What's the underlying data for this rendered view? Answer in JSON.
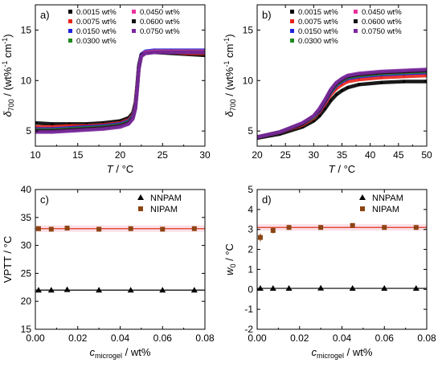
{
  "chart_data": [
    {
      "type": "scatter",
      "panel_label": "a)",
      "xlabel": "T / °C",
      "ylabel": "δ700 / (wt%-1 cm-1)",
      "xlim": [
        10,
        30
      ],
      "ylim": [
        3.5,
        17.5
      ],
      "xticks": [
        10,
        15,
        20,
        25,
        30
      ],
      "yticks": [
        5,
        10,
        15
      ],
      "legend_position": "top",
      "series": [
        {
          "name": "0.0015 wt%",
          "color": "#000000",
          "x": [
            10,
            12,
            14,
            16,
            18,
            20,
            21,
            21.5,
            21.8,
            22,
            22.2,
            22.5,
            23,
            24,
            26,
            28,
            30
          ],
          "y": [
            5.8,
            5.7,
            5.7,
            5.7,
            5.8,
            6.0,
            6.3,
            6.8,
            7.8,
            9.5,
            11.5,
            12.6,
            12.8,
            12.8,
            12.7,
            12.6,
            12.5
          ]
        },
        {
          "name": "0.0075 wt%",
          "color": "#e8241a",
          "x": [
            10,
            12,
            14,
            16,
            18,
            20,
            21,
            21.5,
            21.8,
            22,
            22.2,
            22.5,
            23,
            24,
            26,
            28,
            30
          ],
          "y": [
            5.4,
            5.4,
            5.5,
            5.5,
            5.6,
            5.8,
            6.1,
            6.6,
            7.6,
            9.4,
            11.4,
            12.5,
            12.8,
            12.8,
            12.8,
            12.7,
            12.7
          ]
        },
        {
          "name": "0.0150 wt%",
          "color": "#1f22e0",
          "x": [
            10,
            12,
            14,
            16,
            18,
            20,
            21,
            21.5,
            21.8,
            22,
            22.2,
            22.5,
            23,
            24,
            26,
            28,
            30
          ],
          "y": [
            5.2,
            5.2,
            5.3,
            5.4,
            5.5,
            5.7,
            6.0,
            6.5,
            7.5,
            9.3,
            11.4,
            12.6,
            12.9,
            13.0,
            13.0,
            13.0,
            13.0
          ]
        },
        {
          "name": "0.0300 wt%",
          "color": "#1e8a1e",
          "x": [
            10,
            12,
            14,
            16,
            18,
            20,
            21,
            21.5,
            21.8,
            22,
            22.2,
            22.5,
            23,
            24,
            26,
            28,
            30
          ],
          "y": [
            5.1,
            5.1,
            5.2,
            5.3,
            5.4,
            5.6,
            5.9,
            6.4,
            7.4,
            9.2,
            11.3,
            12.5,
            12.8,
            12.9,
            12.9,
            12.9,
            12.9
          ]
        },
        {
          "name": "0.0450 wt%",
          "color": "#e8329b",
          "x": [
            10,
            12,
            14,
            16,
            18,
            20,
            21,
            21.5,
            21.8,
            22,
            22.2,
            22.5,
            23,
            24,
            26,
            28,
            30
          ],
          "y": [
            5.0,
            5.0,
            5.1,
            5.2,
            5.3,
            5.5,
            5.8,
            6.3,
            7.3,
            9.1,
            11.2,
            12.5,
            12.8,
            12.9,
            12.9,
            12.9,
            12.9
          ]
        },
        {
          "name": "0.0600 wt%",
          "color": "#111111",
          "x": [
            10,
            12,
            14,
            16,
            18,
            20,
            21,
            21.5,
            21.8,
            22,
            22.2,
            22.5,
            23,
            24,
            26,
            28,
            30
          ],
          "y": [
            5.0,
            5.0,
            5.1,
            5.2,
            5.3,
            5.5,
            5.8,
            6.3,
            7.3,
            9.1,
            11.2,
            12.5,
            12.7,
            12.8,
            12.8,
            12.8,
            12.8
          ]
        },
        {
          "name": "0.0750 wt%",
          "color": "#7b2aa0",
          "x": [
            10,
            12,
            14,
            16,
            18,
            20,
            21,
            21.5,
            21.8,
            22,
            22.2,
            22.5,
            23,
            24,
            26,
            28,
            30
          ],
          "y": [
            4.9,
            4.9,
            5.0,
            5.1,
            5.2,
            5.4,
            5.7,
            6.2,
            7.2,
            9.0,
            11.1,
            12.4,
            12.7,
            12.8,
            12.8,
            12.8,
            12.8
          ]
        }
      ]
    },
    {
      "type": "scatter",
      "panel_label": "b)",
      "xlabel": "T / °C",
      "ylabel": "δ700 / (wt%-1 cm-1)",
      "xlim": [
        20,
        50
      ],
      "ylim": [
        3.5,
        17.5
      ],
      "xticks": [
        20,
        25,
        30,
        35,
        40,
        45,
        50
      ],
      "yticks": [
        5,
        10,
        15
      ],
      "legend_position": "top",
      "series": [
        {
          "name": "0.0015 wt%",
          "color": "#000000",
          "x": [
            20,
            24,
            28,
            30,
            31,
            32,
            33,
            34,
            35,
            36,
            38,
            42,
            46,
            50
          ],
          "y": [
            4.3,
            4.7,
            5.4,
            6.0,
            6.5,
            7.2,
            8.0,
            8.6,
            9.0,
            9.3,
            9.6,
            9.8,
            9.9,
            9.9
          ]
        },
        {
          "name": "0.0075 wt%",
          "color": "#e8241a",
          "x": [
            20,
            24,
            28,
            30,
            31,
            32,
            33,
            34,
            35,
            36,
            38,
            42,
            46,
            50
          ],
          "y": [
            4.4,
            4.9,
            5.6,
            6.3,
            6.9,
            7.7,
            8.6,
            9.2,
            9.6,
            9.9,
            10.1,
            10.3,
            10.4,
            10.5
          ]
        },
        {
          "name": "0.0150 wt%",
          "color": "#1f22e0",
          "x": [
            20,
            24,
            28,
            30,
            31,
            32,
            33,
            34,
            35,
            36,
            38,
            42,
            46,
            50
          ],
          "y": [
            4.4,
            4.9,
            5.7,
            6.4,
            7.0,
            7.9,
            8.8,
            9.5,
            9.9,
            10.2,
            10.4,
            10.6,
            10.7,
            10.8
          ]
        },
        {
          "name": "0.0300 wt%",
          "color": "#1e8a1e",
          "x": [
            20,
            24,
            28,
            30,
            31,
            32,
            33,
            34,
            35,
            36,
            38,
            42,
            46,
            50
          ],
          "y": [
            4.4,
            4.9,
            5.7,
            6.4,
            7.1,
            8.0,
            8.9,
            9.6,
            10.0,
            10.3,
            10.5,
            10.7,
            10.8,
            10.9
          ]
        },
        {
          "name": "0.0450 wt%",
          "color": "#e8329b",
          "x": [
            20,
            24,
            28,
            30,
            31,
            32,
            33,
            34,
            35,
            36,
            38,
            42,
            46,
            50
          ],
          "y": [
            4.4,
            4.9,
            5.7,
            6.5,
            7.1,
            8.0,
            9.0,
            9.7,
            10.1,
            10.4,
            10.6,
            10.8,
            10.9,
            11.0
          ]
        },
        {
          "name": "0.0600 wt%",
          "color": "#111111",
          "x": [
            20,
            24,
            28,
            30,
            31,
            32,
            33,
            34,
            35,
            36,
            38,
            42,
            46,
            50
          ],
          "y": [
            4.4,
            4.9,
            5.7,
            6.5,
            7.1,
            8.0,
            9.0,
            9.7,
            10.1,
            10.4,
            10.6,
            10.8,
            10.9,
            11.0
          ]
        },
        {
          "name": "0.0750 wt%",
          "color": "#7b2aa0",
          "x": [
            20,
            24,
            28,
            30,
            31,
            32,
            33,
            34,
            35,
            36,
            38,
            42,
            46,
            50
          ],
          "y": [
            4.4,
            4.9,
            5.8,
            6.5,
            7.2,
            8.1,
            9.1,
            9.8,
            10.2,
            10.5,
            10.7,
            10.9,
            11.0,
            11.1
          ]
        }
      ]
    },
    {
      "type": "scatter",
      "panel_label": "c)",
      "xlabel": "cmicrogel / wt%",
      "ylabel": "VPTT / °C",
      "xlim": [
        0,
        0.08
      ],
      "ylim": [
        15,
        40
      ],
      "xticks": [
        0.0,
        0.02,
        0.04,
        0.06,
        0.08
      ],
      "xticklabels": [
        "0.00",
        "0.02",
        "0.04",
        "0.06",
        "0.08"
      ],
      "yticks": [
        15,
        20,
        25,
        30,
        35,
        40
      ],
      "legend_position": "top-right",
      "series": [
        {
          "name": "NNPAM",
          "marker": "triangle",
          "color": "#000000",
          "x": [
            0.0015,
            0.0075,
            0.015,
            0.03,
            0.045,
            0.06,
            0.075
          ],
          "y": [
            22.0,
            22.0,
            22.1,
            22.0,
            22.0,
            22.0,
            22.0
          ],
          "fit_y": 22.0
        },
        {
          "name": "NIPAM",
          "marker": "square",
          "color": "#8b4513",
          "fit_color": "#e0341c",
          "x": [
            0.0015,
            0.0075,
            0.015,
            0.03,
            0.045,
            0.06,
            0.075
          ],
          "y": [
            33.0,
            32.9,
            33.1,
            32.9,
            33.0,
            32.9,
            33.0
          ],
          "fit_y": 33.0
        }
      ]
    },
    {
      "type": "scatter",
      "panel_label": "d)",
      "xlabel": "cmicrogel / wt%",
      "ylabel": "w0 / °C",
      "xlim": [
        0,
        0.08
      ],
      "ylim": [
        -2,
        5
      ],
      "xticks": [
        0.0,
        0.02,
        0.04,
        0.06,
        0.08
      ],
      "xticklabels": [
        "0.00",
        "0.02",
        "0.04",
        "0.06",
        "0.08"
      ],
      "yticks": [
        -2,
        -1,
        0,
        1,
        2,
        3,
        4,
        5
      ],
      "legend_position": "top-right",
      "series": [
        {
          "name": "NNPAM",
          "marker": "triangle",
          "color": "#000000",
          "x": [
            0.0015,
            0.0075,
            0.015,
            0.03,
            0.045,
            0.06,
            0.075
          ],
          "y": [
            0.05,
            0.05,
            0.05,
            0.06,
            0.05,
            0.05,
            0.05
          ],
          "fit_y": 0.05
        },
        {
          "name": "NIPAM",
          "marker": "square",
          "color": "#8b4513",
          "fit_color": "#e0341c",
          "x": [
            0.0015,
            0.0075,
            0.015,
            0.03,
            0.045,
            0.06,
            0.075
          ],
          "y": [
            2.6,
            2.95,
            3.1,
            3.1,
            3.2,
            3.1,
            3.1
          ],
          "y_err": [
            0.2,
            0.15,
            0.12,
            0.08,
            0.05,
            0.05,
            0.05
          ],
          "fit_y": 3.1
        }
      ]
    }
  ]
}
